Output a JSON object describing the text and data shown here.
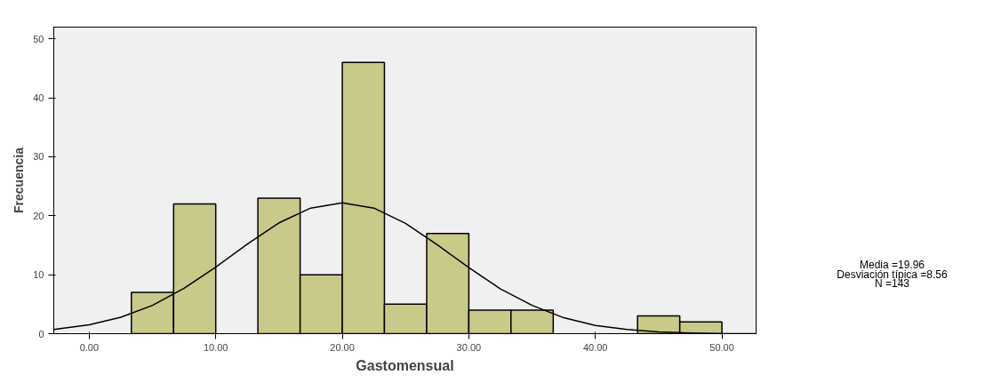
{
  "chart_data": {
    "type": "histogram",
    "xlabel": "Gastomensual",
    "ylabel": "Frecuencia",
    "bins": [
      3.33,
      6.67,
      10,
      13.33,
      16.67,
      20,
      23.33,
      26.67,
      30,
      33.33,
      36.67,
      40,
      43.33,
      46.67,
      50
    ],
    "values": [
      7,
      22,
      0,
      23,
      10,
      46,
      5,
      17,
      4,
      4,
      0,
      0,
      3,
      2
    ],
    "color": "#c9c98a",
    "series": [
      {
        "type": "line",
        "color": "#000000",
        "x": [
          -2.8,
          0,
          2.5,
          5,
          7.5,
          10,
          12.5,
          15,
          17.5,
          20,
          22.5,
          25,
          27.5,
          30,
          32.5,
          35,
          37.5,
          40,
          42.5,
          45,
          47.5,
          50,
          52.7
        ],
        "values": [
          0.7,
          1.5,
          2.8,
          4.8,
          7.7,
          11.3,
          15.2,
          18.8,
          21.3,
          22.2,
          21.3,
          18.7,
          15.1,
          11.2,
          7.6,
          4.8,
          2.7,
          1.4,
          0.7,
          0.3,
          0.1,
          0.0,
          0.0
        ]
      }
    ],
    "xlim": [
      -2.8,
      52.7
    ],
    "ylim": [
      0,
      52
    ],
    "xticks": [
      {
        "value": 0,
        "label": "0.00"
      },
      {
        "value": 10,
        "label": "10.00"
      },
      {
        "value": 20,
        "label": "20.00"
      },
      {
        "value": 30,
        "label": "30.00"
      },
      {
        "value": 40,
        "label": "40.00"
      },
      {
        "value": 50,
        "label": "50.00"
      }
    ],
    "yticks": [
      0,
      10,
      20,
      30,
      40,
      50
    ],
    "grid": false,
    "annotations": [
      "Media =19.96",
      "Desviación típica =8.56",
      "N =143"
    ]
  }
}
